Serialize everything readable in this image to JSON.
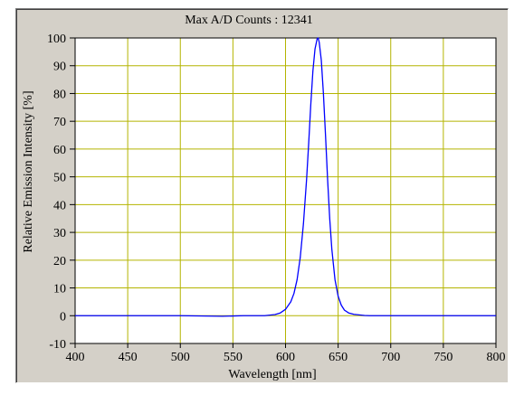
{
  "chart_data": {
    "type": "line",
    "title": "Max A/D Counts : 12341",
    "xlabel": "Wavelength [nm]",
    "ylabel": "Relative Emission Intensity [%]",
    "xlim": [
      400,
      800
    ],
    "ylim": [
      -10,
      100
    ],
    "xticks": [
      400,
      450,
      500,
      550,
      600,
      650,
      700,
      750,
      800
    ],
    "yticks": [
      -10,
      0,
      10,
      20,
      30,
      40,
      50,
      60,
      70,
      80,
      90,
      100
    ],
    "grid": true,
    "series": [
      {
        "color": "#0000ff",
        "x": [
          400,
          450,
          500,
          540,
          560,
          580,
          590,
          595,
          600,
          605,
          608,
          611,
          614,
          617,
          620,
          622,
          624,
          626,
          628,
          630,
          631,
          632,
          634,
          636,
          638,
          640,
          642,
          644,
          647,
          650,
          653,
          656,
          660,
          665,
          670,
          675,
          680,
          700,
          750,
          800
        ],
        "y": [
          0,
          0,
          0,
          -0.2,
          0,
          0,
          0.4,
          1,
          2.3,
          5,
          8,
          13,
          21,
          33,
          49,
          62,
          76,
          88,
          96,
          99.6,
          100,
          98.5,
          92,
          80,
          65,
          49,
          35,
          24,
          13,
          7,
          3.8,
          2,
          1,
          0.5,
          0.3,
          0.1,
          0,
          0,
          0,
          0
        ]
      }
    ],
    "colors": {
      "frame": "#d4d0c8",
      "plot_background": "#ffffff",
      "grid": "#b4b400",
      "line": "#0000ff"
    }
  }
}
